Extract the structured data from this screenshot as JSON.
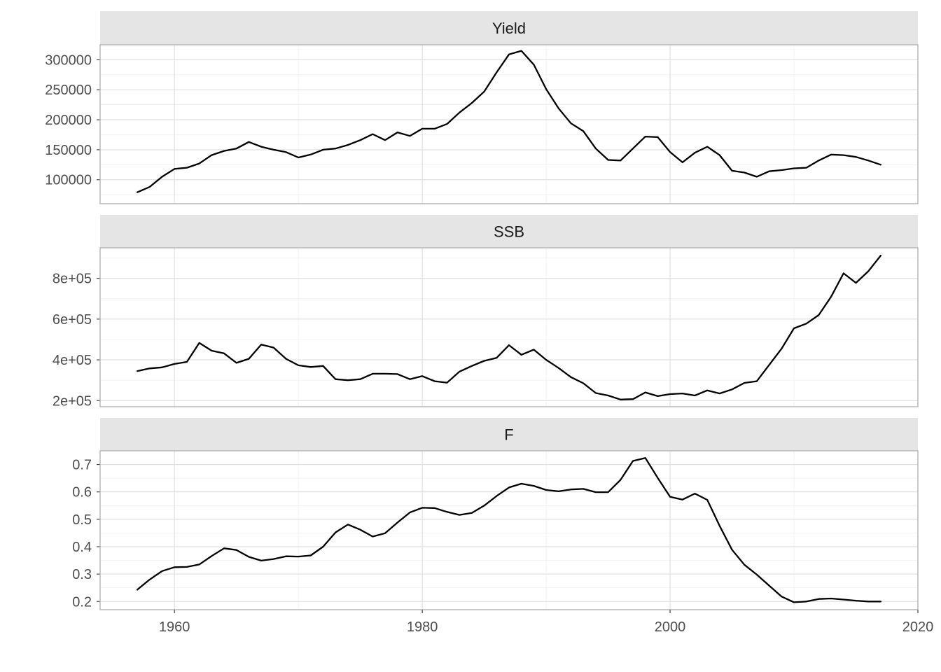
{
  "chart_data": {
    "type": "line",
    "layout": "faceted-vertical",
    "grid": true,
    "x_axis": {
      "ticks": [
        1960,
        1980,
        2000,
        2020
      ],
      "xlim": [
        1954,
        2020
      ]
    },
    "years": [
      1957,
      1958,
      1959,
      1960,
      1961,
      1962,
      1963,
      1964,
      1965,
      1966,
      1967,
      1968,
      1969,
      1970,
      1971,
      1972,
      1973,
      1974,
      1975,
      1976,
      1977,
      1978,
      1979,
      1980,
      1981,
      1982,
      1983,
      1984,
      1985,
      1986,
      1987,
      1988,
      1989,
      1990,
      1991,
      1992,
      1993,
      1994,
      1995,
      1996,
      1997,
      1998,
      1999,
      2000,
      2001,
      2002,
      2003,
      2004,
      2005,
      2006,
      2007,
      2008,
      2009,
      2010,
      2011,
      2012,
      2013,
      2014,
      2015,
      2016,
      2017
    ],
    "panels": [
      {
        "title": "Yield",
        "ylim": [
          60000,
          325000
        ],
        "y_ticks": [
          100000,
          150000,
          200000,
          250000,
          300000
        ],
        "y_tick_labels": [
          "100000",
          "150000",
          "200000",
          "250000",
          "300000"
        ],
        "values": [
          79000,
          88000,
          105000,
          118000,
          120000,
          127000,
          141000,
          148000,
          152000,
          163000,
          155000,
          150000,
          146000,
          137000,
          142000,
          150000,
          152000,
          158000,
          166000,
          176000,
          166000,
          179000,
          173000,
          185000,
          185000,
          193000,
          212000,
          228000,
          247000,
          279000,
          309000,
          315000,
          292000,
          251000,
          219000,
          194000,
          181000,
          152000,
          133000,
          132000,
          152000,
          172000,
          171000,
          146000,
          129000,
          145000,
          155000,
          141000,
          115000,
          112000,
          105000,
          114000,
          116000,
          119000,
          120000,
          132000,
          142000,
          141000,
          138000,
          132000,
          125000
        ]
      },
      {
        "title": "SSB",
        "ylim": [
          170000,
          950000
        ],
        "y_ticks": [
          200000,
          400000,
          600000,
          800000
        ],
        "y_tick_labels": [
          "2e+05",
          "4e+05",
          "6e+05",
          "8e+05"
        ],
        "values": [
          345000,
          358000,
          363000,
          380000,
          390000,
          483000,
          445000,
          432000,
          385000,
          405000,
          475000,
          460000,
          405000,
          373000,
          365000,
          370000,
          305000,
          300000,
          305000,
          332000,
          332000,
          330000,
          305000,
          320000,
          295000,
          288000,
          342000,
          370000,
          395000,
          410000,
          472000,
          425000,
          450000,
          400000,
          360000,
          315000,
          285000,
          237000,
          225000,
          205000,
          207000,
          240000,
          222000,
          232000,
          235000,
          225000,
          250000,
          235000,
          255000,
          287000,
          295000,
          375000,
          455000,
          555000,
          578000,
          620000,
          710000,
          825000,
          778000,
          835000,
          912000
        ]
      },
      {
        "title": "F",
        "ylim": [
          0.17,
          0.75
        ],
        "y_ticks": [
          0.2,
          0.3,
          0.4,
          0.5,
          0.6,
          0.7
        ],
        "y_tick_labels": [
          "0.2",
          "0.3",
          "0.4",
          "0.5",
          "0.6",
          "0.7"
        ],
        "values": [
          0.243,
          0.28,
          0.311,
          0.325,
          0.326,
          0.335,
          0.366,
          0.394,
          0.388,
          0.363,
          0.349,
          0.355,
          0.365,
          0.364,
          0.368,
          0.4,
          0.452,
          0.481,
          0.462,
          0.437,
          0.449,
          0.488,
          0.525,
          0.542,
          0.541,
          0.527,
          0.516,
          0.523,
          0.55,
          0.585,
          0.616,
          0.63,
          0.622,
          0.607,
          0.602,
          0.609,
          0.611,
          0.599,
          0.599,
          0.644,
          0.713,
          0.724,
          0.651,
          0.582,
          0.572,
          0.594,
          0.571,
          0.476,
          0.389,
          0.334,
          0.298,
          0.258,
          0.218,
          0.197,
          0.2,
          0.209,
          0.211,
          0.207,
          0.203,
          0.2,
          0.2
        ]
      }
    ]
  }
}
